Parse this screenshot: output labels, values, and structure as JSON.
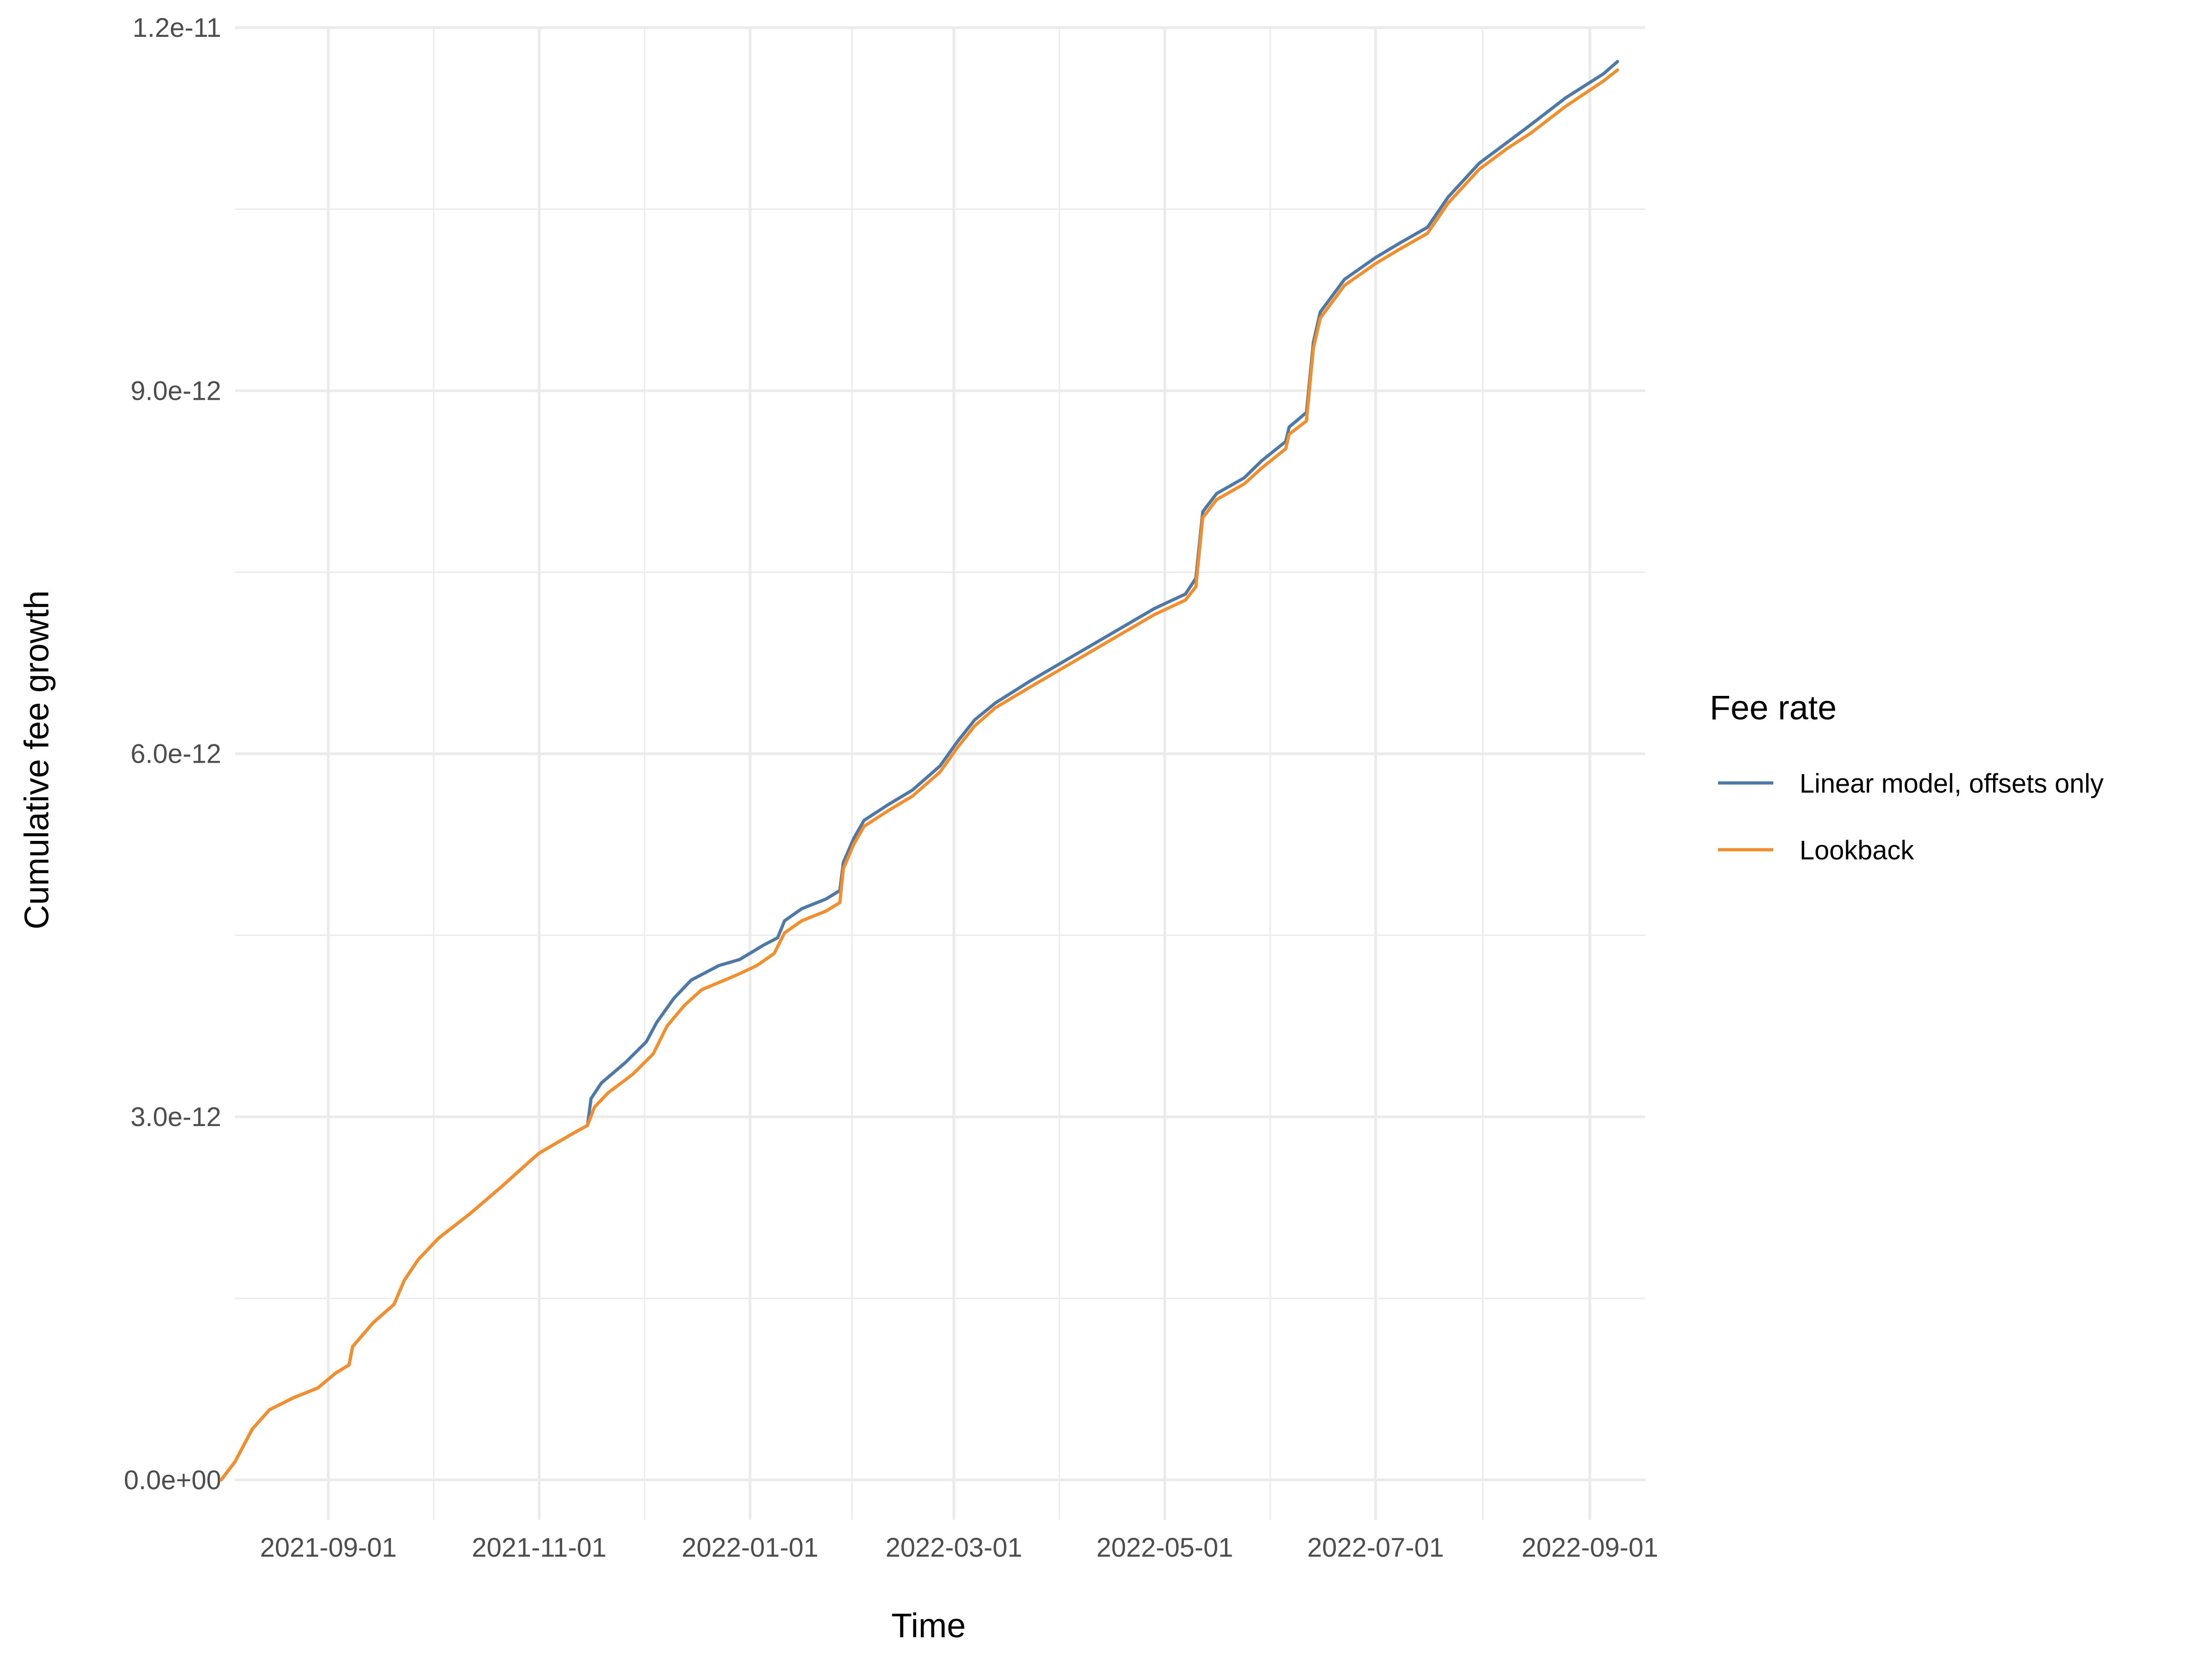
{
  "chart_data": {
    "type": "line",
    "title": "",
    "xlabel": "Time",
    "ylabel": "Cumulative fee growth",
    "x_type": "date",
    "xlim": [
      "2021-08-05",
      "2022-09-17"
    ],
    "ylim": [
      -3.3e-13,
      1.2e-11
    ],
    "x_ticks": [
      "2021-09-01",
      "2021-11-01",
      "2022-01-01",
      "2022-03-01",
      "2022-05-01",
      "2022-07-01",
      "2022-09-01"
    ],
    "x_tick_labels": [
      "2021-09-01",
      "2021-11-01",
      "2022-01-01",
      "2022-03-01",
      "2022-05-01",
      "2022-07-01",
      "2022-09-01"
    ],
    "y_ticks": [
      0,
      3e-12,
      6e-12,
      9e-12,
      1.2e-11
    ],
    "y_tick_labels": [
      "0.0e+00",
      "3.0e-12",
      "6.0e-12",
      "9.0e-12",
      "1.2e-11"
    ],
    "grid": true,
    "legend": {
      "title": "Fee rate",
      "position": "right"
    },
    "series": [
      {
        "name": "Linear model, offsets only",
        "color": "#4e79a7",
        "points": [
          [
            "2021-08-01",
            0.0
          ],
          [
            "2021-08-05",
            1.5e-13
          ],
          [
            "2021-08-10",
            4.2e-13
          ],
          [
            "2021-08-15",
            5.8e-13
          ],
          [
            "2021-08-22",
            6.8e-13
          ],
          [
            "2021-08-29",
            7.6e-13
          ],
          [
            "2021-09-03",
            8.8e-13
          ],
          [
            "2021-09-07",
            9.5e-13
          ],
          [
            "2021-09-08",
            1.1e-12
          ],
          [
            "2021-09-14",
            1.3e-12
          ],
          [
            "2021-09-20",
            1.45e-12
          ],
          [
            "2021-09-23",
            1.65e-12
          ],
          [
            "2021-09-27",
            1.82e-12
          ],
          [
            "2021-10-03",
            2e-12
          ],
          [
            "2021-10-12",
            2.2e-12
          ],
          [
            "2021-10-21",
            2.42e-12
          ],
          [
            "2021-10-28",
            2.6e-12
          ],
          [
            "2021-11-01",
            2.7e-12
          ],
          [
            "2021-11-10",
            2.85e-12
          ],
          [
            "2021-11-15",
            2.93e-12
          ],
          [
            "2021-11-16",
            3.15e-12
          ],
          [
            "2021-11-19",
            3.28e-12
          ],
          [
            "2021-11-26",
            3.45e-12
          ],
          [
            "2021-12-02",
            3.62e-12
          ],
          [
            "2021-12-05",
            3.78e-12
          ],
          [
            "2021-12-10",
            3.98e-12
          ],
          [
            "2021-12-15",
            4.13e-12
          ],
          [
            "2021-12-23",
            4.25e-12
          ],
          [
            "2021-12-29",
            4.3e-12
          ],
          [
            "2022-01-05",
            4.42e-12
          ],
          [
            "2022-01-09",
            4.48e-12
          ],
          [
            "2022-01-11",
            4.62e-12
          ],
          [
            "2022-01-16",
            4.72e-12
          ],
          [
            "2022-01-23",
            4.8e-12
          ],
          [
            "2022-01-27",
            4.87e-12
          ],
          [
            "2022-01-28",
            5.1e-12
          ],
          [
            "2022-01-31",
            5.3e-12
          ],
          [
            "2022-02-03",
            5.45e-12
          ],
          [
            "2022-02-10",
            5.58e-12
          ],
          [
            "2022-02-17",
            5.7e-12
          ],
          [
            "2022-02-25",
            5.9e-12
          ],
          [
            "2022-03-02",
            6.1e-12
          ],
          [
            "2022-03-07",
            6.28e-12
          ],
          [
            "2022-03-13",
            6.42e-12
          ],
          [
            "2022-03-23",
            6.6e-12
          ],
          [
            "2022-04-04",
            6.8e-12
          ],
          [
            "2022-04-16",
            7e-12
          ],
          [
            "2022-04-28",
            7.2e-12
          ],
          [
            "2022-05-07",
            7.32e-12
          ],
          [
            "2022-05-10",
            7.45e-12
          ],
          [
            "2022-05-12",
            8e-12
          ],
          [
            "2022-05-16",
            8.15e-12
          ],
          [
            "2022-05-24",
            8.28e-12
          ],
          [
            "2022-05-29",
            8.42e-12
          ],
          [
            "2022-06-05",
            8.58e-12
          ],
          [
            "2022-06-06",
            8.7e-12
          ],
          [
            "2022-06-11",
            8.82e-12
          ],
          [
            "2022-06-13",
            9.4e-12
          ],
          [
            "2022-06-15",
            9.65e-12
          ],
          [
            "2022-06-22",
            9.92e-12
          ],
          [
            "2022-07-01",
            1.01e-11
          ],
          [
            "2022-07-08",
            1.022e-11
          ],
          [
            "2022-07-16",
            1.035e-11
          ],
          [
            "2022-07-22",
            1.06e-11
          ],
          [
            "2022-07-31",
            1.088e-11
          ],
          [
            "2022-08-08",
            1.105e-11
          ],
          [
            "2022-08-15",
            1.12e-11
          ],
          [
            "2022-08-25",
            1.142e-11
          ],
          [
            "2022-09-05",
            1.162e-11
          ],
          [
            "2022-09-09",
            1.172e-11
          ]
        ]
      },
      {
        "name": "Lookback",
        "color": "#f28e2b",
        "points": [
          [
            "2021-08-01",
            0.0
          ],
          [
            "2021-08-05",
            1.5e-13
          ],
          [
            "2021-08-10",
            4.2e-13
          ],
          [
            "2021-08-15",
            5.8e-13
          ],
          [
            "2021-08-22",
            6.8e-13
          ],
          [
            "2021-08-29",
            7.6e-13
          ],
          [
            "2021-09-03",
            8.8e-13
          ],
          [
            "2021-09-07",
            9.5e-13
          ],
          [
            "2021-09-08",
            1.1e-12
          ],
          [
            "2021-09-14",
            1.3e-12
          ],
          [
            "2021-09-20",
            1.45e-12
          ],
          [
            "2021-09-23",
            1.65e-12
          ],
          [
            "2021-09-27",
            1.82e-12
          ],
          [
            "2021-10-03",
            2e-12
          ],
          [
            "2021-10-12",
            2.2e-12
          ],
          [
            "2021-10-21",
            2.42e-12
          ],
          [
            "2021-10-28",
            2.6e-12
          ],
          [
            "2021-11-01",
            2.7e-12
          ],
          [
            "2021-11-10",
            2.85e-12
          ],
          [
            "2021-11-15",
            2.93e-12
          ],
          [
            "2021-11-17",
            3.08e-12
          ],
          [
            "2021-11-21",
            3.2e-12
          ],
          [
            "2021-11-28",
            3.35e-12
          ],
          [
            "2021-12-04",
            3.52e-12
          ],
          [
            "2021-12-08",
            3.75e-12
          ],
          [
            "2021-12-13",
            3.92e-12
          ],
          [
            "2021-12-18",
            4.05e-12
          ],
          [
            "2021-12-28",
            4.17e-12
          ],
          [
            "2022-01-03",
            4.25e-12
          ],
          [
            "2022-01-08",
            4.35e-12
          ],
          [
            "2022-01-11",
            4.52e-12
          ],
          [
            "2022-01-16",
            4.62e-12
          ],
          [
            "2022-01-23",
            4.7e-12
          ],
          [
            "2022-01-27",
            4.77e-12
          ],
          [
            "2022-01-28",
            5.05e-12
          ],
          [
            "2022-01-31",
            5.25e-12
          ],
          [
            "2022-02-03",
            5.4e-12
          ],
          [
            "2022-02-10",
            5.53e-12
          ],
          [
            "2022-02-17",
            5.65e-12
          ],
          [
            "2022-02-25",
            5.85e-12
          ],
          [
            "2022-03-02",
            6.05e-12
          ],
          [
            "2022-03-07",
            6.23e-12
          ],
          [
            "2022-03-13",
            6.38e-12
          ],
          [
            "2022-03-23",
            6.55e-12
          ],
          [
            "2022-04-04",
            6.75e-12
          ],
          [
            "2022-04-16",
            6.95e-12
          ],
          [
            "2022-04-28",
            7.15e-12
          ],
          [
            "2022-05-07",
            7.27e-12
          ],
          [
            "2022-05-10",
            7.38e-12
          ],
          [
            "2022-05-12",
            7.95e-12
          ],
          [
            "2022-05-16",
            8.1e-12
          ],
          [
            "2022-05-24",
            8.23e-12
          ],
          [
            "2022-05-29",
            8.36e-12
          ],
          [
            "2022-06-05",
            8.52e-12
          ],
          [
            "2022-06-06",
            8.64e-12
          ],
          [
            "2022-06-11",
            8.75e-12
          ],
          [
            "2022-06-13",
            9.35e-12
          ],
          [
            "2022-06-15",
            9.6e-12
          ],
          [
            "2022-06-22",
            9.87e-12
          ],
          [
            "2022-07-01",
            1.005e-11
          ],
          [
            "2022-07-08",
            1.017e-11
          ],
          [
            "2022-07-16",
            1.03e-11
          ],
          [
            "2022-07-22",
            1.055e-11
          ],
          [
            "2022-07-31",
            1.083e-11
          ],
          [
            "2022-08-08",
            1.1e-11
          ],
          [
            "2022-08-15",
            1.113e-11
          ],
          [
            "2022-08-25",
            1.135e-11
          ],
          [
            "2022-09-05",
            1.156e-11
          ],
          [
            "2022-09-09",
            1.165e-11
          ]
        ]
      }
    ]
  }
}
